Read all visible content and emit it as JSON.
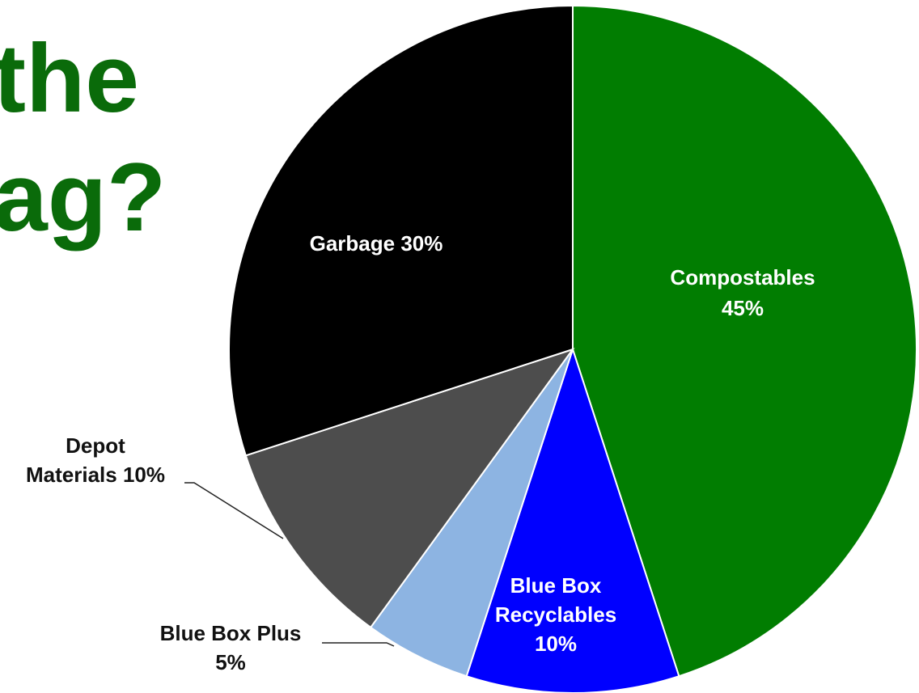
{
  "title": {
    "lines": [
      "the",
      "ag?"
    ]
  },
  "colors": {
    "title": "#0a6b0a",
    "slice_border": "#ffffff",
    "leader_line": "#222222"
  },
  "chart_data": {
    "type": "pie",
    "start_angle_deg": 0,
    "direction": "clockwise",
    "slices": [
      {
        "name": "Compostables",
        "value": 45,
        "color": "#017d01",
        "label_lines": [
          "Compostables",
          "45%"
        ],
        "label_position": "inside"
      },
      {
        "name": "Blue Box Recyclables",
        "value": 10,
        "color": "#0000ff",
        "label_lines": [
          "Blue Box",
          "Recyclables",
          "10%"
        ],
        "label_position": "inside"
      },
      {
        "name": "Blue Box Plus",
        "value": 5,
        "color": "#8db4e2",
        "label_lines": [
          "Blue Box Plus",
          "5%"
        ],
        "label_position": "outside-leader"
      },
      {
        "name": "Depot Materials",
        "value": 10,
        "color": "#4d4d4d",
        "label_lines": [
          "Depot",
          "Materials  10%"
        ],
        "label_position": "outside-leader"
      },
      {
        "name": "Garbage",
        "value": 30,
        "color": "#000000",
        "label_lines": [
          "Garbage 30%"
        ],
        "label_position": "inside"
      }
    ]
  }
}
